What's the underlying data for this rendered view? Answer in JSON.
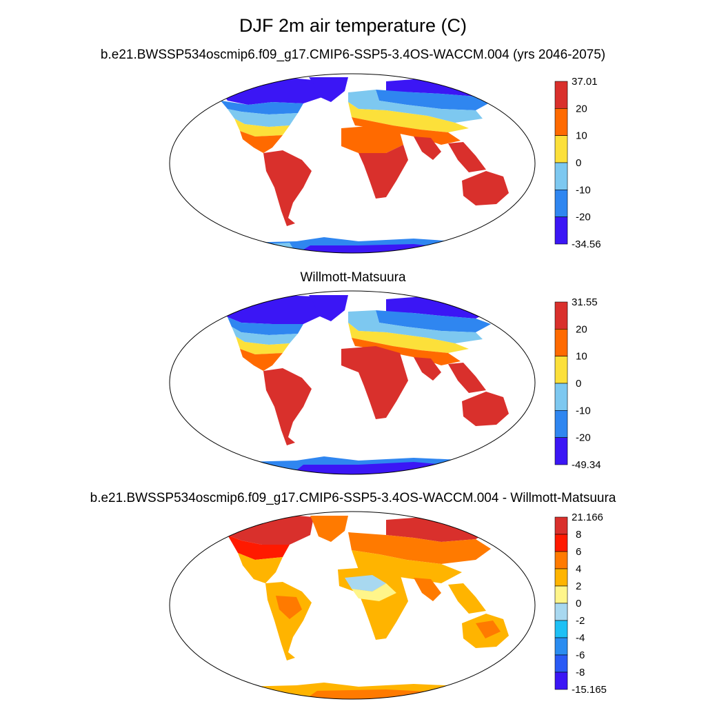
{
  "title": "DJF 2m air temperature (C)",
  "panels": [
    {
      "id": "model",
      "subtitle": "b.e21.BWSSP534oscmip6.f09_g17.CMIP6-SSP5-3.4OS-WACCM.004 (yrs 2046-2075)",
      "colorbar": {
        "labels": [
          "37.01",
          "20",
          "10",
          "0",
          "-10",
          "-20",
          "-34.56"
        ],
        "colors": [
          "#d9302c",
          "#ff6a00",
          "#fce03a",
          "#7dc8f0",
          "#2f86f0",
          "#3b16f5"
        ]
      }
    },
    {
      "id": "obs",
      "subtitle": "Willmott-Matsuura",
      "colorbar": {
        "labels": [
          "31.55",
          "20",
          "10",
          "0",
          "-10",
          "-20",
          "-49.34"
        ],
        "colors": [
          "#d9302c",
          "#ff6a00",
          "#fce03a",
          "#7dc8f0",
          "#2f86f0",
          "#3b16f5"
        ]
      }
    },
    {
      "id": "diff",
      "subtitle": "b.e21.BWSSP534oscmip6.f09_g17.CMIP6-SSP5-3.4OS-WACCM.004 - Willmott-Matsuura",
      "colorbar": {
        "labels": [
          "21.166",
          "8",
          "6",
          "4",
          "2",
          "0",
          "-2",
          "-4",
          "-6",
          "-8",
          "-15.165"
        ],
        "colors": [
          "#d9302c",
          "#ff1a00",
          "#ff7a00",
          "#ffb400",
          "#fff58a",
          "#a8d8f0",
          "#1ec0f5",
          "#2a8cf0",
          "#2a5af5",
          "#3b16f5"
        ]
      }
    }
  ]
}
